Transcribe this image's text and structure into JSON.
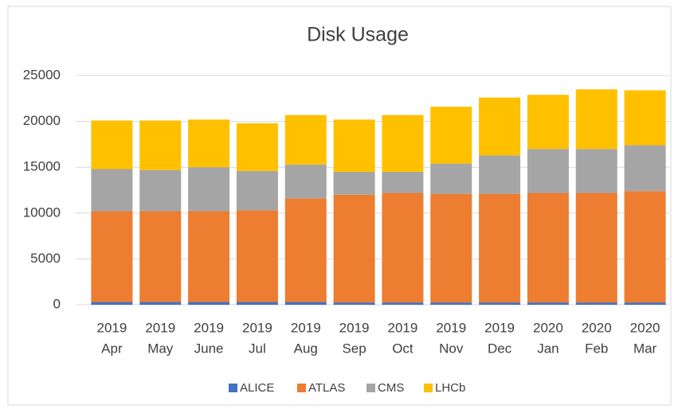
{
  "chart_data": {
    "type": "stacked_bar",
    "title": "Disk Usage",
    "categories": [
      [
        "2019",
        "Apr"
      ],
      [
        "2019",
        "May"
      ],
      [
        "2019",
        "June"
      ],
      [
        "2019",
        "Jul"
      ],
      [
        "2019",
        "Aug"
      ],
      [
        "2019",
        "Sep"
      ],
      [
        "2019",
        "Oct"
      ],
      [
        "2019",
        "Nov"
      ],
      [
        "2019",
        "Dec"
      ],
      [
        "2020",
        "Jan"
      ],
      [
        "2020",
        "Feb"
      ],
      [
        "2020",
        "Mar"
      ]
    ],
    "series": [
      {
        "name": "ALICE",
        "color": "#4472c4",
        "values": [
          300,
          300,
          300,
          300,
          300,
          250,
          250,
          250,
          250,
          250,
          250,
          250
        ]
      },
      {
        "name": "ATLAS",
        "color": "#ed7d31",
        "values": [
          9900,
          9900,
          9900,
          10000,
          11300,
          11750,
          11950,
          11850,
          11850,
          11950,
          11950,
          12150
        ]
      },
      {
        "name": "CMS",
        "color": "#a5a5a5",
        "values": [
          4600,
          4500,
          4800,
          4300,
          3700,
          2500,
          2300,
          3300,
          4200,
          4800,
          4800,
          5000
        ]
      },
      {
        "name": "LHCb",
        "color": "#ffc000",
        "values": [
          5300,
          5400,
          5200,
          5200,
          5400,
          5700,
          6200,
          6200,
          6300,
          5900,
          6500,
          6000
        ]
      }
    ],
    "ylim": [
      0,
      25000
    ],
    "yticks": [
      0,
      5000,
      10000,
      15000,
      20000,
      25000
    ],
    "grid": true,
    "legend": "bottom"
  }
}
